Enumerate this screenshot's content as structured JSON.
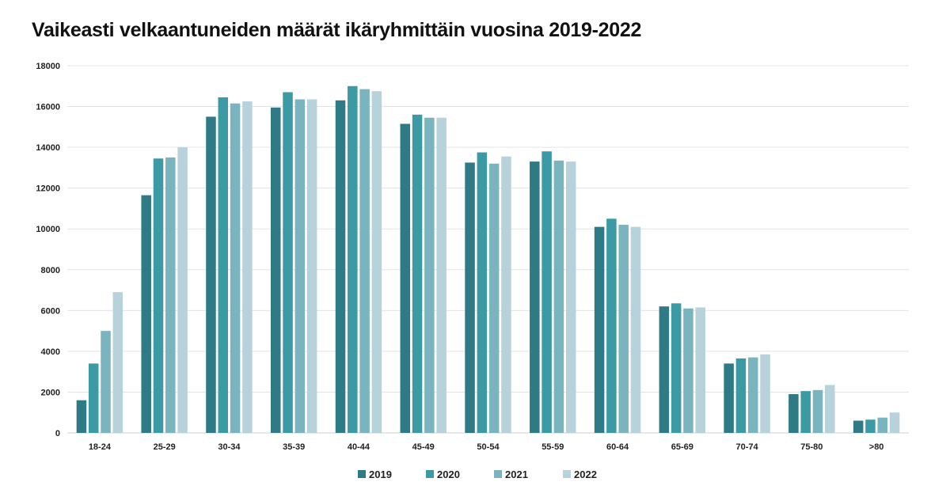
{
  "chart_data": {
    "type": "bar",
    "title": "Vaikeasti velkaantuneiden määrät ikäryhmittäin vuosina 2019-2022",
    "xlabel": "",
    "ylabel": "",
    "ylim": [
      0,
      18000
    ],
    "yticks": [
      0,
      2000,
      4000,
      6000,
      8000,
      10000,
      12000,
      14000,
      16000,
      18000
    ],
    "grid": true,
    "legend_position": "bottom",
    "categories": [
      "18-24",
      "25-29",
      "30-34",
      "35-39",
      "40-44",
      "45-49",
      "50-54",
      "55-59",
      "60-64",
      "65-69",
      "70-74",
      "75-80",
      ">80"
    ],
    "series": [
      {
        "name": "2019",
        "color": "#2e7a85",
        "values": [
          1600,
          11650,
          15500,
          15950,
          16300,
          15150,
          13250,
          13300,
          10100,
          6200,
          3400,
          1900,
          600
        ]
      },
      {
        "name": "2020",
        "color": "#3b9aa4",
        "values": [
          3400,
          13450,
          16450,
          16700,
          17000,
          15600,
          13750,
          13800,
          10500,
          6350,
          3650,
          2050,
          650
        ]
      },
      {
        "name": "2021",
        "color": "#7ab4bf",
        "values": [
          5000,
          13500,
          16150,
          16350,
          16850,
          15450,
          13200,
          13350,
          10200,
          6100,
          3700,
          2100,
          750
        ]
      },
      {
        "name": "2022",
        "color": "#b7d2da",
        "values": [
          6900,
          14000,
          16250,
          16350,
          16750,
          15450,
          13550,
          13300,
          10100,
          6150,
          3850,
          2350,
          1000
        ]
      }
    ]
  }
}
